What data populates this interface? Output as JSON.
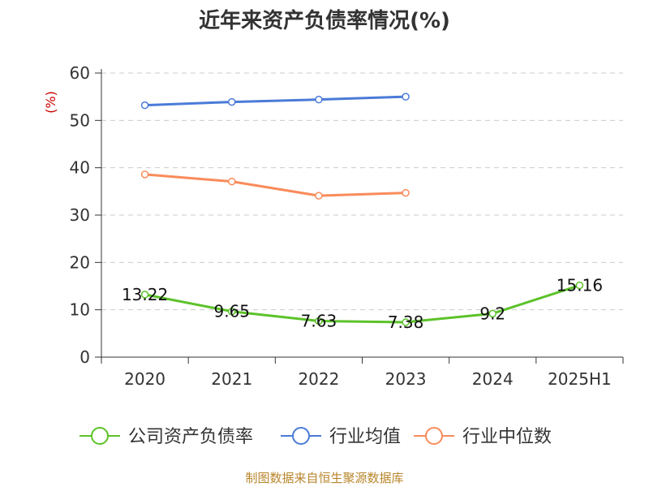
{
  "chart_data": {
    "type": "line",
    "title": "近年来资产负债率情况(%)",
    "ylabel": "(%)",
    "xlabel": "",
    "categories": [
      "2020",
      "2021",
      "2022",
      "2023",
      "2024",
      "2025H1"
    ],
    "ylim": [
      0,
      60
    ],
    "yticks": [
      "0",
      "10",
      "20",
      "30",
      "40",
      "50",
      "60"
    ],
    "grid": true,
    "legend_position": "bottom",
    "series": [
      {
        "name": "公司资产负债率",
        "color": "#5cc22a",
        "values": [
          13.22,
          9.65,
          7.63,
          7.38,
          9.2,
          15.16
        ],
        "labels": [
          "13.22",
          "9.65",
          "7.63",
          "7.38",
          "9.2",
          "15.16"
        ]
      },
      {
        "name": "行业均值",
        "color": "#4a7bd8",
        "values": [
          53.2,
          53.9,
          54.4,
          55.0,
          null,
          null
        ]
      },
      {
        "name": "行业中位数",
        "color": "#f98b5a",
        "values": [
          38.6,
          37.1,
          34.1,
          34.7,
          null,
          null
        ]
      }
    ]
  },
  "footer": {
    "source": "制图数据来自恒生聚源数据库"
  }
}
